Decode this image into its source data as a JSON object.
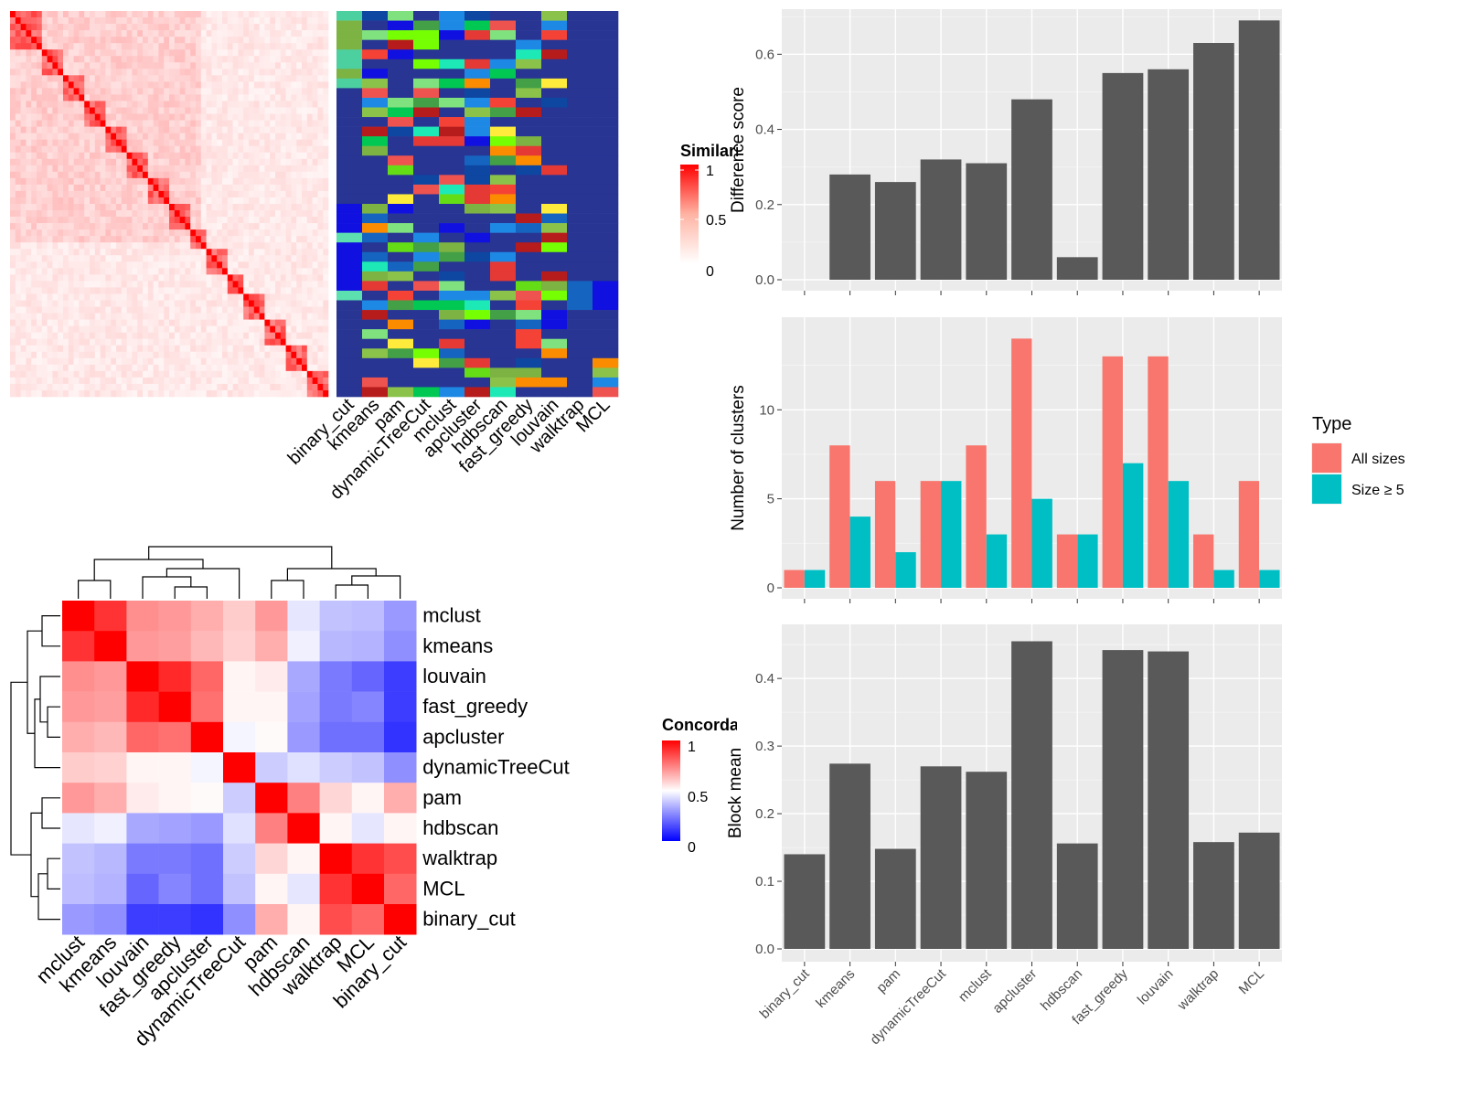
{
  "methods_order": [
    "binary_cut",
    "kmeans",
    "pam",
    "dynamicTreeCut",
    "mclust",
    "apcluster",
    "hdbscan",
    "fast_greedy",
    "louvain",
    "walktrap",
    "MCL"
  ],
  "similarity_heatmap": {
    "legend_title": "Similarity",
    "legend_ticks": [
      "1",
      "0.5",
      "0"
    ]
  },
  "concordance_heatmap": {
    "legend_title": "Concordance",
    "legend_ticks": [
      "1",
      "0.5",
      "0"
    ],
    "order": [
      "mclust",
      "kmeans",
      "louvain",
      "fast_greedy",
      "apcluster",
      "dynamicTreeCut",
      "pam",
      "hdbscan",
      "walktrap",
      "MCL",
      "binary_cut"
    ],
    "matrix": [
      [
        1.0,
        0.9,
        0.72,
        0.7,
        0.66,
        0.6,
        0.7,
        0.45,
        0.38,
        0.37,
        0.3
      ],
      [
        0.9,
        1.0,
        0.7,
        0.69,
        0.64,
        0.59,
        0.66,
        0.47,
        0.36,
        0.35,
        0.28
      ],
      [
        0.72,
        0.7,
        1.0,
        0.92,
        0.8,
        0.52,
        0.54,
        0.33,
        0.24,
        0.2,
        0.12
      ],
      [
        0.7,
        0.69,
        0.92,
        1.0,
        0.78,
        0.52,
        0.52,
        0.32,
        0.24,
        0.26,
        0.12
      ],
      [
        0.66,
        0.64,
        0.8,
        0.78,
        1.0,
        0.48,
        0.51,
        0.3,
        0.22,
        0.22,
        0.1
      ],
      [
        0.6,
        0.59,
        0.52,
        0.52,
        0.48,
        1.0,
        0.4,
        0.44,
        0.4,
        0.38,
        0.28
      ],
      [
        0.7,
        0.66,
        0.54,
        0.52,
        0.51,
        0.4,
        1.0,
        0.75,
        0.58,
        0.52,
        0.66
      ],
      [
        0.45,
        0.47,
        0.33,
        0.32,
        0.3,
        0.44,
        0.75,
        1.0,
        0.52,
        0.45,
        0.52
      ],
      [
        0.38,
        0.36,
        0.24,
        0.24,
        0.22,
        0.4,
        0.58,
        0.52,
        1.0,
        0.9,
        0.85
      ],
      [
        0.37,
        0.35,
        0.2,
        0.26,
        0.22,
        0.38,
        0.52,
        0.45,
        0.9,
        1.0,
        0.8
      ],
      [
        0.3,
        0.28,
        0.12,
        0.12,
        0.1,
        0.28,
        0.66,
        0.52,
        0.85,
        0.8,
        1.0
      ]
    ]
  },
  "chart_data": [
    {
      "type": "bar",
      "categories": [
        "binary_cut",
        "kmeans",
        "pam",
        "dynamicTreeCut",
        "mclust",
        "apcluster",
        "hdbscan",
        "fast_greedy",
        "louvain",
        "walktrap",
        "MCL"
      ],
      "values": [
        0.0,
        0.28,
        0.26,
        0.32,
        0.31,
        0.48,
        0.06,
        0.55,
        0.56,
        0.63,
        0.69
      ],
      "xlabel": "",
      "ylabel": "Difference score",
      "ylim": [
        0,
        0.72
      ],
      "yticks": [
        0.0,
        0.2,
        0.4,
        0.6
      ],
      "ytick_labels": [
        "0.0",
        "0.2",
        "0.4",
        "0.6"
      ],
      "grid": true
    },
    {
      "type": "bar",
      "categories": [
        "binary_cut",
        "kmeans",
        "pam",
        "dynamicTreeCut",
        "mclust",
        "apcluster",
        "hdbscan",
        "fast_greedy",
        "louvain",
        "walktrap",
        "MCL"
      ],
      "series": [
        {
          "name": "All sizes",
          "color": "#F8766D",
          "values": [
            1,
            8,
            6,
            6,
            8,
            14,
            3,
            13,
            13,
            3,
            6
          ]
        },
        {
          "name": "Size ≥ 5",
          "color": "#00BFC4",
          "values": [
            1,
            4,
            2,
            6,
            3,
            5,
            3,
            7,
            6,
            1,
            1
          ]
        }
      ],
      "xlabel": "",
      "ylabel": "Number of clusters",
      "ylim": [
        0,
        15.2
      ],
      "yticks": [
        0,
        5,
        10
      ],
      "ytick_labels": [
        "0",
        "5",
        "10"
      ],
      "legend_title": "Type",
      "legend_position": "right",
      "grid": true
    },
    {
      "type": "bar",
      "categories": [
        "binary_cut",
        "kmeans",
        "pam",
        "dynamicTreeCut",
        "mclust",
        "apcluster",
        "hdbscan",
        "fast_greedy",
        "louvain",
        "walktrap",
        "MCL"
      ],
      "values": [
        0.14,
        0.274,
        0.148,
        0.27,
        0.262,
        0.455,
        0.156,
        0.442,
        0.44,
        0.158,
        0.172
      ],
      "xlabel": "",
      "ylabel": "Block mean",
      "ylim": [
        0,
        0.48
      ],
      "yticks": [
        0.0,
        0.1,
        0.2,
        0.3,
        0.4
      ],
      "ytick_labels": [
        "0.0",
        "0.1",
        "0.2",
        "0.3",
        "0.4"
      ],
      "grid": true
    }
  ]
}
